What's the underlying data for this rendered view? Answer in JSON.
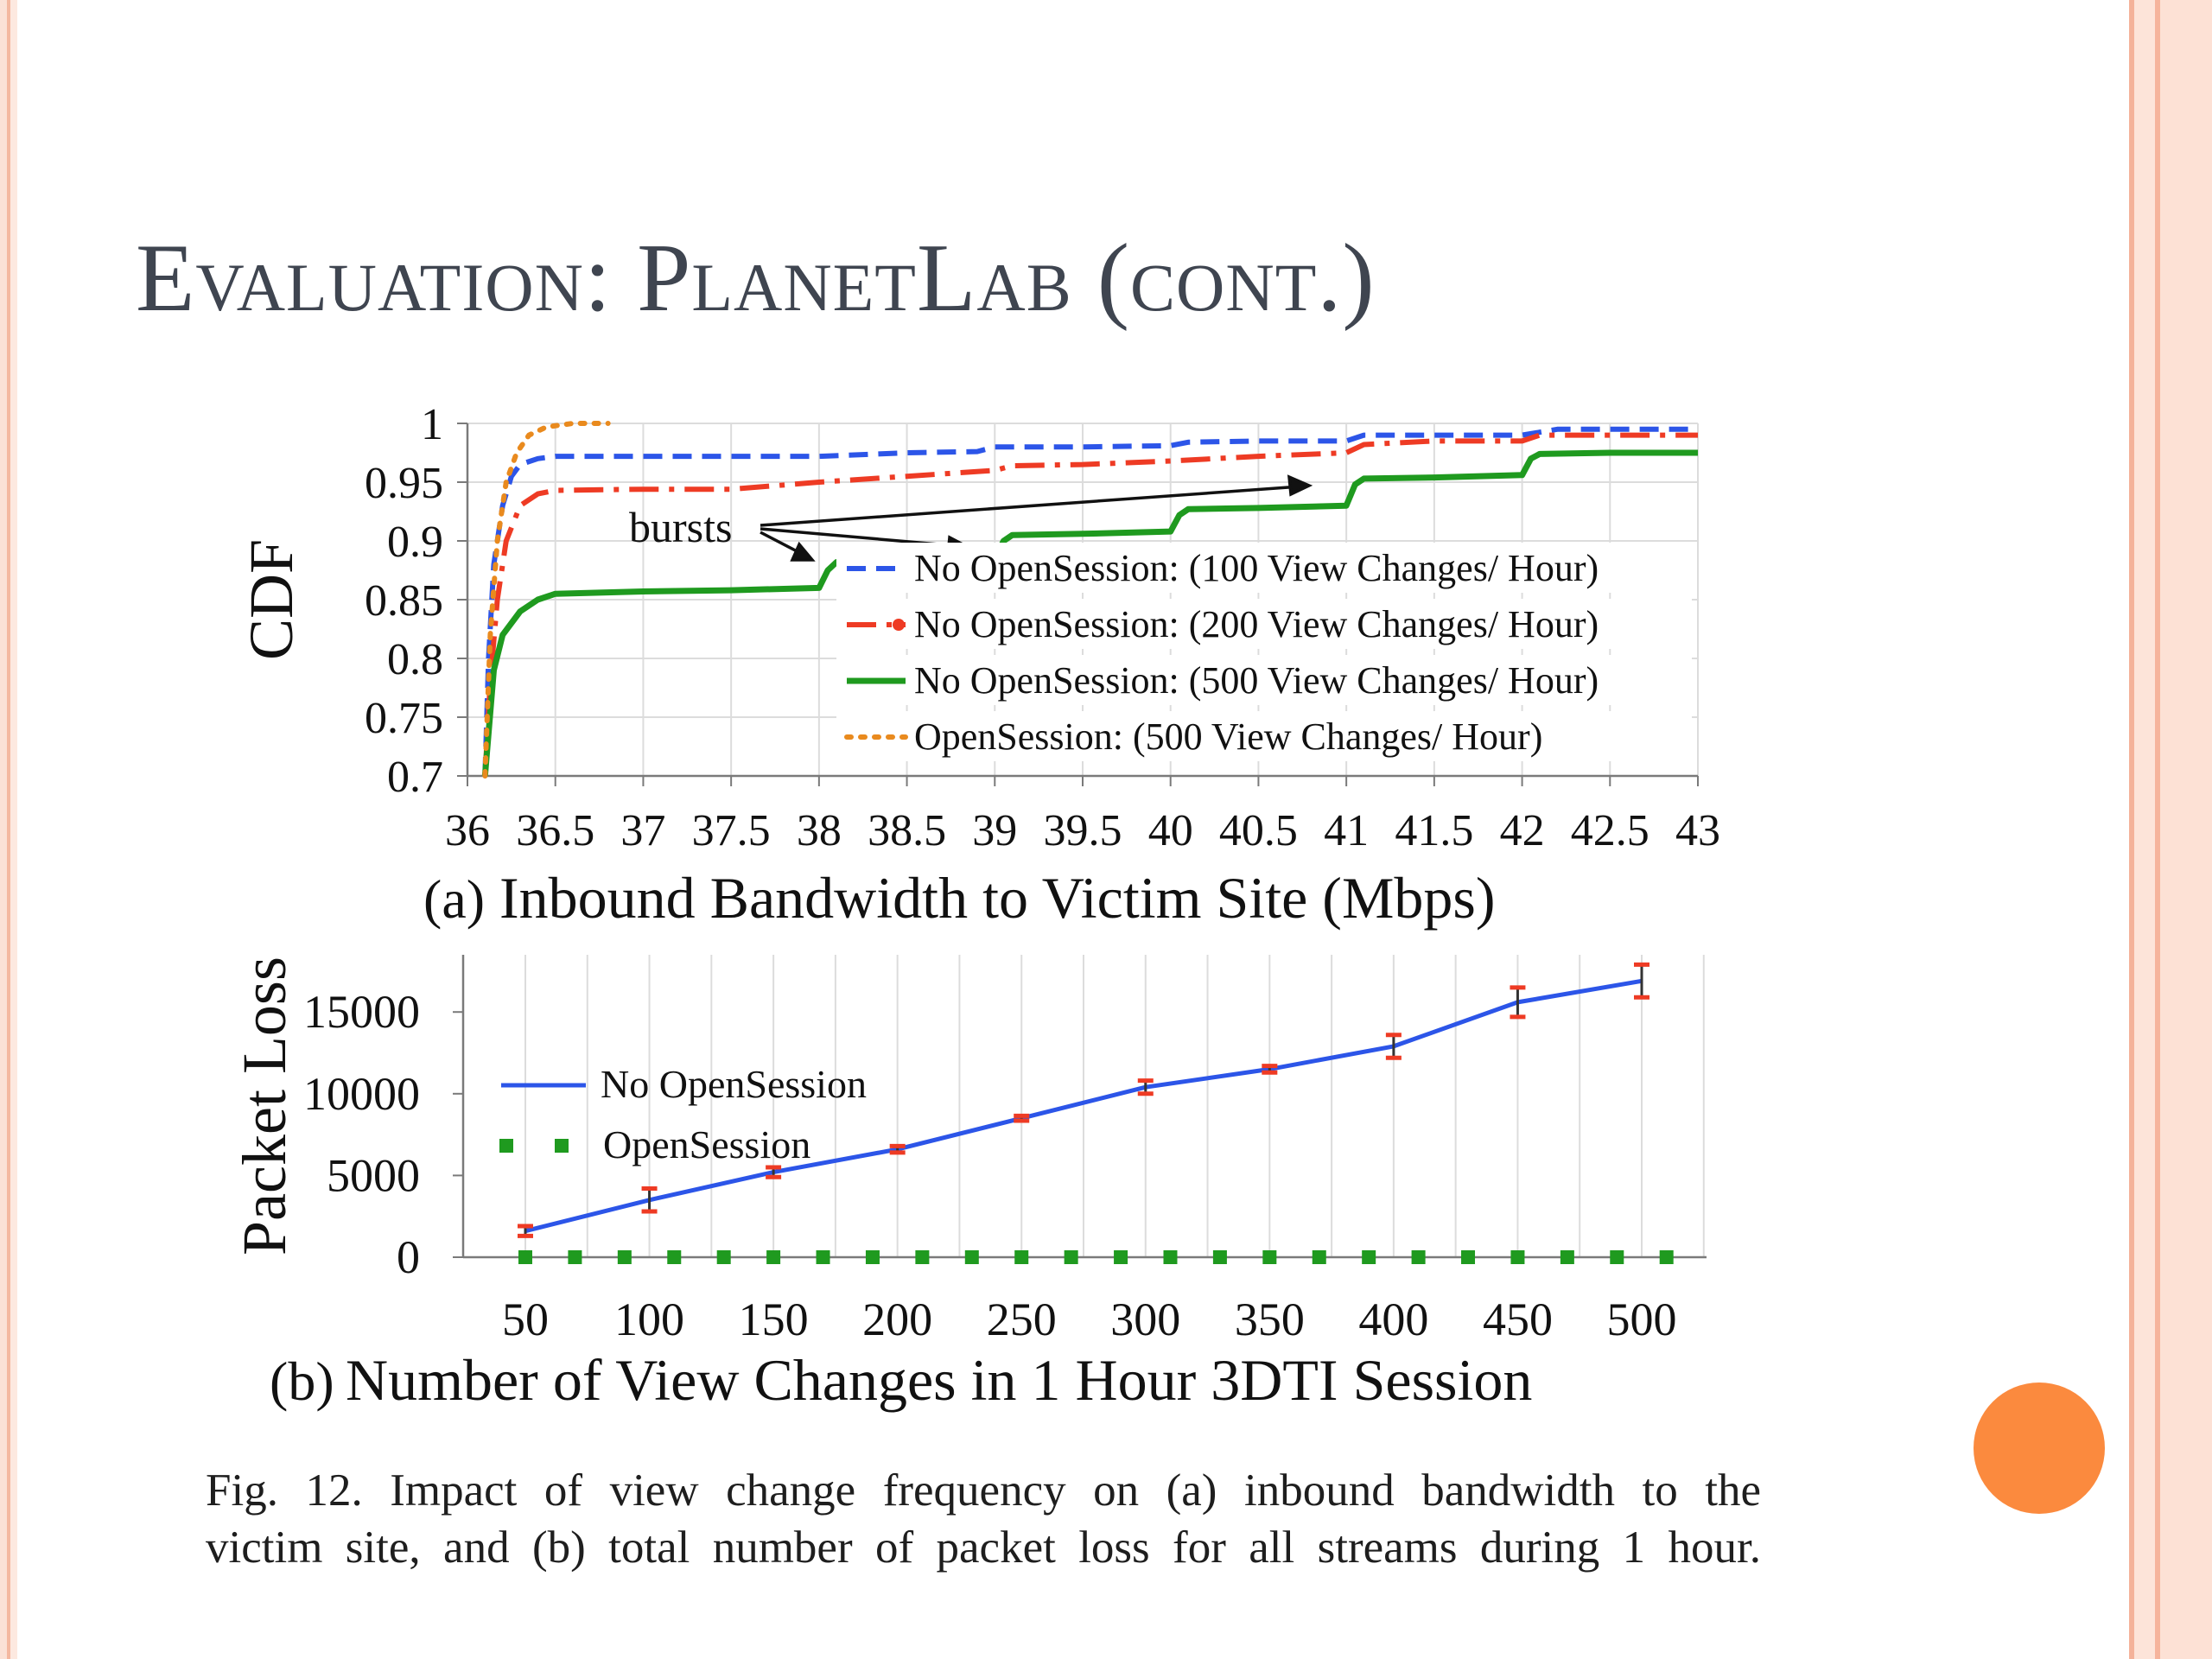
{
  "slide": {
    "title": "Evaluation: PlanetLab (cont.)",
    "caption_line1": "Fig. 12.    Impact of view change frequency on (a) inbound bandwidth to the",
    "caption_line2": "victim site, and (b) total number of packet loss for all streams during 1 hour."
  },
  "colors": {
    "blue": "#2c55e8",
    "red": "#ee3b24",
    "green": "#1f9a1f",
    "orange": "#e98a1e",
    "accent_dot": "#fb8a3e"
  },
  "chart_data": [
    {
      "type": "line",
      "panel_label": "(a)",
      "xlabel": "Inbound Bandwidth to Victim Site (Mbps)",
      "ylabel": "CDF",
      "xlim": [
        36,
        43
      ],
      "ylim": [
        0.7,
        1
      ],
      "xticks": [
        "36",
        "36.5",
        "37",
        "37.5",
        "38",
        "38.5",
        "39",
        "39.5",
        "40",
        "40.5",
        "41",
        "41.5",
        "42",
        "42.5",
        "43"
      ],
      "yticks": [
        "0.7",
        "0.75",
        "0.8",
        "0.85",
        "0.9",
        "0.95",
        "1"
      ],
      "grid": true,
      "legend_position": "bottom-right",
      "annotation": "bursts",
      "series": [
        {
          "name": "No OpenSession: (100 View Changes/ Hour)",
          "color": "blue",
          "style": "dashed",
          "x": [
            36.1,
            36.12,
            36.15,
            36.2,
            36.25,
            36.3,
            36.4,
            36.5,
            37,
            37.5,
            38,
            38.5,
            38.9,
            39,
            39.5,
            40,
            40.1,
            40.5,
            41,
            41.1,
            41.5,
            42,
            42.2,
            42.5,
            43
          ],
          "y": [
            0.7,
            0.8,
            0.88,
            0.93,
            0.955,
            0.965,
            0.97,
            0.972,
            0.972,
            0.972,
            0.972,
            0.975,
            0.976,
            0.98,
            0.98,
            0.981,
            0.984,
            0.985,
            0.985,
            0.99,
            0.99,
            0.99,
            0.995,
            0.995,
            0.995
          ]
        },
        {
          "name": "No OpenSession: (200 View Changes/ Hour)",
          "color": "red",
          "style": "dashdot",
          "x": [
            36.1,
            36.13,
            36.17,
            36.22,
            36.3,
            36.4,
            36.5,
            37,
            37.5,
            38,
            38.5,
            39,
            39.1,
            39.5,
            40,
            40.5,
            41,
            41.1,
            41.5,
            42,
            42.1,
            42.5,
            43
          ],
          "y": [
            0.7,
            0.78,
            0.85,
            0.9,
            0.93,
            0.94,
            0.943,
            0.944,
            0.944,
            0.95,
            0.955,
            0.96,
            0.964,
            0.965,
            0.968,
            0.972,
            0.975,
            0.982,
            0.985,
            0.985,
            0.99,
            0.99,
            0.99
          ]
        },
        {
          "name": "No OpenSession: (500 View Changes/ Hour)",
          "color": "green",
          "style": "solid",
          "x": [
            36.1,
            36.15,
            36.2,
            36.3,
            36.4,
            36.5,
            37,
            37.5,
            38,
            38.05,
            38.1,
            38.5,
            39,
            39.05,
            39.1,
            39.5,
            40,
            40.05,
            40.1,
            40.5,
            41,
            41.05,
            41.1,
            41.5,
            42,
            42.05,
            42.1,
            42.5,
            43
          ],
          "y": [
            0.7,
            0.79,
            0.82,
            0.84,
            0.85,
            0.855,
            0.857,
            0.858,
            0.86,
            0.875,
            0.882,
            0.884,
            0.885,
            0.9,
            0.905,
            0.906,
            0.908,
            0.922,
            0.927,
            0.928,
            0.93,
            0.948,
            0.953,
            0.954,
            0.956,
            0.97,
            0.974,
            0.975,
            0.975
          ]
        },
        {
          "name": "OpenSession: (500 View Changes/ Hour)",
          "color": "orange",
          "style": "dotted",
          "x": [
            36.1,
            36.13,
            36.17,
            36.22,
            36.28,
            36.35,
            36.45,
            36.6,
            36.8
          ],
          "y": [
            0.7,
            0.82,
            0.9,
            0.95,
            0.975,
            0.99,
            0.997,
            1,
            1
          ]
        }
      ]
    },
    {
      "type": "line",
      "panel_label": "(b)",
      "xlabel": "Number of View Changes in 1 Hour 3DTI Session",
      "ylabel": "Packet Loss",
      "categories": [
        "50",
        "100",
        "150",
        "200",
        "250",
        "300",
        "350",
        "400",
        "450",
        "500"
      ],
      "ylim": [
        0,
        18500
      ],
      "yticks": [
        "0",
        "5000",
        "10000",
        "15000"
      ],
      "grid": true,
      "legend_position": "upper-left",
      "series": [
        {
          "name": "No OpenSession",
          "color": "blue",
          "style": "solid",
          "values": [
            1600,
            3500,
            5200,
            6600,
            8500,
            10400,
            11500,
            12900,
            15600,
            16900
          ],
          "errors": [
            300,
            700,
            300,
            200,
            150,
            400,
            200,
            700,
            900,
            1000
          ]
        },
        {
          "name": "OpenSession",
          "color": "green",
          "style": "square-markers",
          "x": [
            50,
            70,
            90,
            110,
            130,
            150,
            170,
            190,
            210,
            230,
            250,
            270,
            290,
            310,
            330,
            350,
            370,
            390,
            410,
            430,
            450,
            470,
            490,
            510
          ],
          "values": [
            0,
            0,
            0,
            0,
            0,
            0,
            0,
            0,
            0,
            0,
            0,
            0,
            0,
            0,
            0,
            0,
            0,
            0,
            0,
            0,
            0,
            0,
            0,
            0
          ]
        }
      ]
    }
  ]
}
